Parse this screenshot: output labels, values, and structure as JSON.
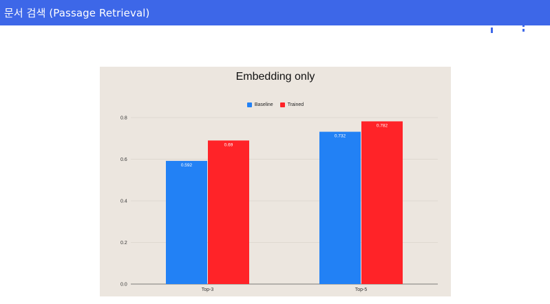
{
  "header": {
    "title": "문서 검색 (Passage Retrieval)",
    "color": "#3d67e8"
  },
  "chart_data": {
    "type": "bar",
    "title": "Embedding only",
    "categories": [
      "Top-3",
      "Top-5"
    ],
    "series": [
      {
        "name": "Baseline",
        "color": "#2281f5",
        "values": [
          0.592,
          0.732
        ],
        "labels": [
          "0.592",
          "0.732"
        ]
      },
      {
        "name": "Trained",
        "color": "#ff2328",
        "values": [
          0.69,
          0.782
        ],
        "labels": [
          "0.69",
          "0.782"
        ]
      }
    ],
    "ylim": [
      0,
      0.8
    ],
    "yticks": [
      "0.0",
      "0.2",
      "0.4",
      "0.6",
      "0.8"
    ],
    "xlabel": "",
    "ylabel": "",
    "grid": true,
    "legend_position": "top-center",
    "background": "#ece6df"
  }
}
